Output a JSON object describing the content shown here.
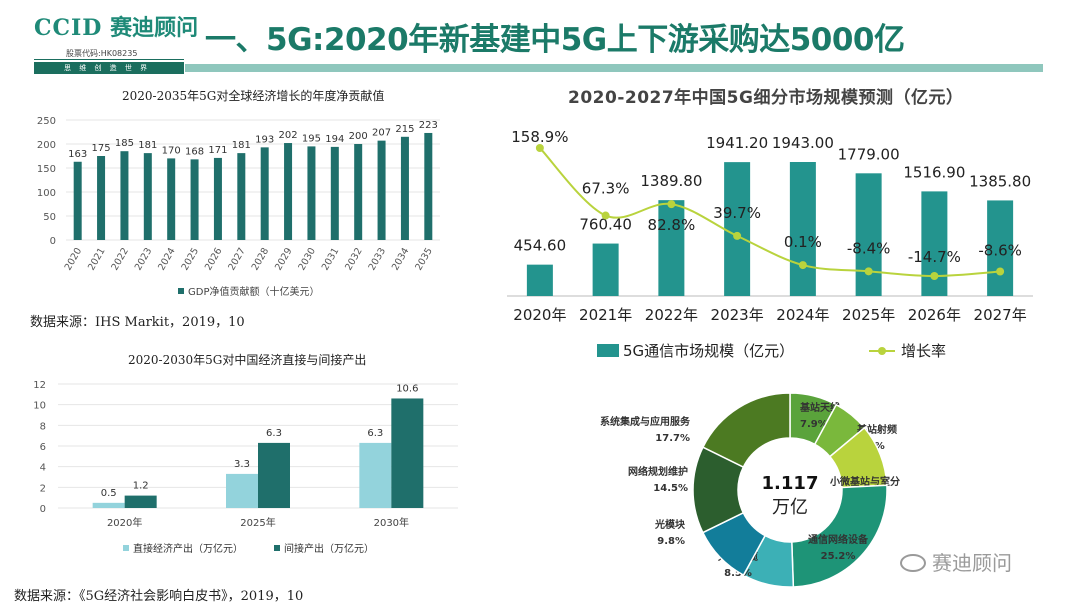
{
  "logo": {
    "brand_latin": "CCID",
    "brand_cn": "赛迪顾问",
    "stock_code": "股票代码:HK08235",
    "slogan": "思 维 创 造 世 界"
  },
  "main_title": "一、5G:2020年新基建中5G上下游采购达5000亿",
  "chart1_title": "2020-2035年5G对全球经济增长的年度净贡献值",
  "chart2_title": "2020-2030年5G对中国经济直接与间接产出",
  "chart3_title": "2020-2027年中国5G细分市场规模预测（亿元）",
  "source1": "数据来源：IHS Markit，2019，10",
  "source2": "数据来源：《5G经济社会影响白皮书》，2019，10",
  "watermark": "赛迪顾问",
  "colors": {
    "teal_dark": "#1f6f6b",
    "teal_mid": "#23948e",
    "teal_light": "#93d3dc",
    "line_green": "#b9d33d",
    "title_green": "#1b7a68"
  },
  "chart_data": [
    {
      "type": "bar",
      "title": "2020-2035年5G对全球经济增长的年度净贡献值",
      "categories": [
        "2020",
        "2021",
        "2022",
        "2023",
        "2024",
        "2025",
        "2026",
        "2027",
        "2028",
        "2029",
        "2030",
        "2031",
        "2032",
        "2033",
        "2034",
        "2035"
      ],
      "series": [
        {
          "name": "GDP净值贡献额（十亿美元）",
          "values": [
            163,
            175,
            185,
            181,
            170,
            168,
            171,
            181,
            193,
            202,
            195,
            194,
            200,
            207,
            215,
            223
          ]
        }
      ],
      "yticks": [
        0,
        50,
        100,
        150,
        200,
        250
      ],
      "ylim": [
        0,
        250
      ],
      "legend_position": "bottom"
    },
    {
      "type": "bar",
      "title": "2020-2030年5G对中国经济直接与间接产出",
      "categories": [
        "2020年",
        "2025年",
        "2030年"
      ],
      "series": [
        {
          "name": "直接经济产出（万亿元）",
          "values": [
            0.5,
            3.3,
            6.3
          ]
        },
        {
          "name": "间接产出（万亿元）",
          "values": [
            1.2,
            6.3,
            10.6
          ]
        }
      ],
      "yticks": [
        0,
        2,
        4,
        6,
        8,
        10,
        12
      ],
      "ylim": [
        0,
        12
      ],
      "legend_position": "bottom"
    },
    {
      "type": "bar",
      "title": "2020-2027年中国5G细分市场规模预测（亿元）",
      "categories": [
        "2020年",
        "2021年",
        "2022年",
        "2023年",
        "2024年",
        "2025年",
        "2026年",
        "2027年"
      ],
      "series": [
        {
          "name": "5G通信市场规模（亿元）",
          "values": [
            454.6,
            760.4,
            1389.8,
            1941.2,
            1943.0,
            1779.0,
            1516.9,
            1385.8
          ],
          "labels": [
            "454.60",
            "760.40",
            "1389.80",
            "1941.20",
            "1943.00",
            "1779.00",
            "1516.90",
            "1385.80"
          ]
        },
        {
          "name": "增长率",
          "type": "line",
          "values": [
            158.9,
            67.3,
            82.8,
            39.7,
            0.1,
            -8.4,
            -14.7,
            -8.6
          ],
          "labels": [
            "158.9%",
            "67.3%",
            "82.8%",
            "39.7%",
            "0.1%",
            "-8.4%",
            "-14.7%",
            "-8.6%"
          ]
        }
      ],
      "legend_position": "bottom"
    },
    {
      "type": "pie",
      "center_value": "1.117",
      "center_unit": "万亿",
      "slices": [
        {
          "name": "基站天线",
          "value": 7.9,
          "label": "7.9%",
          "color": "#5aa33b"
        },
        {
          "name": "基站射频",
          "value": 6.0,
          "label": "6.0%",
          "color": "#7ab83c"
        },
        {
          "name": "小微基站与室分",
          "value": 10.3,
          "label": "10.3%",
          "color": "#b9d33d"
        },
        {
          "name": "通信网络设备",
          "value": 25.2,
          "label": "25.2%",
          "color": "#1e9477"
        },
        {
          "name": "光纤光缆",
          "value": 8.5,
          "label": "8.5%",
          "color": "#3cb0b6"
        },
        {
          "name": "光模块",
          "value": 9.8,
          "label": "9.8%",
          "color": "#127d9a"
        },
        {
          "name": "网络规划维护",
          "value": 14.5,
          "label": "14.5%",
          "color": "#2c5e2e"
        },
        {
          "name": "系统集成与应用服务",
          "value": 17.7,
          "label": "17.7%",
          "color": "#4c7a22"
        }
      ]
    }
  ]
}
